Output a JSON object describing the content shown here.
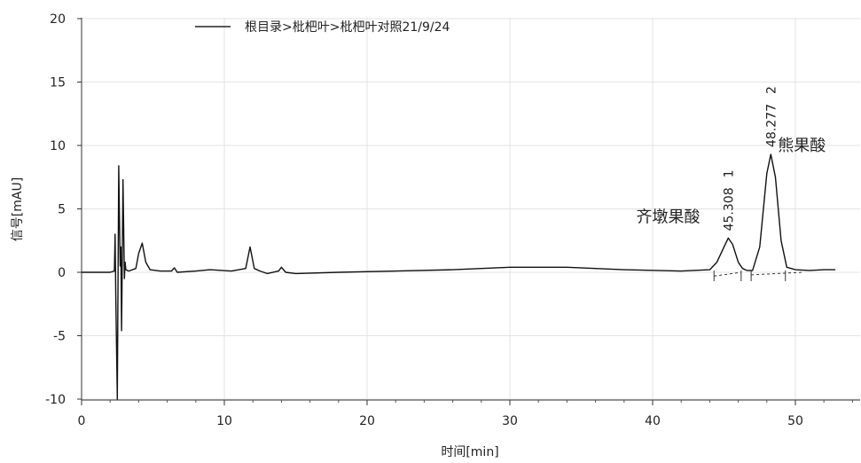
{
  "chart_data": {
    "type": "line",
    "xlabel": "时间[min]",
    "ylabel": "信号[mAU]",
    "xlim": [
      0,
      56
    ],
    "ylim": [
      -10,
      20
    ],
    "x_ticks": [
      0,
      10,
      20,
      30,
      40,
      50
    ],
    "y_ticks": [
      -10,
      -5,
      0,
      5,
      10,
      15,
      20
    ],
    "legend": {
      "position": "top",
      "entries": [
        "根目录>枇杷叶>枇杷叶对照21/9/24"
      ]
    },
    "series": [
      {
        "name": "根目录>枇杷叶>枇杷叶对照21/9/24",
        "x": [
          0,
          2.0,
          2.3,
          2.35,
          2.4,
          2.5,
          2.6,
          2.7,
          2.75,
          2.8,
          2.85,
          2.9,
          3.0,
          3.05,
          3.1,
          3.3,
          3.8,
          4.0,
          4.25,
          4.5,
          4.8,
          5.5,
          6.3,
          6.5,
          6.7,
          8.0,
          9.0,
          10.5,
          11.5,
          11.8,
          12.1,
          12.5,
          13.0,
          13.8,
          14.0,
          14.3,
          15.0,
          18.0,
          22.0,
          26.0,
          30.0,
          34.0,
          38.0,
          42.0,
          44.0,
          44.5,
          45.0,
          45.3,
          45.6,
          46.0,
          46.3,
          46.6,
          47.0,
          47.5,
          48.0,
          48.28,
          48.6,
          49.0,
          49.4,
          50.0,
          51.0,
          52.0,
          52.8
        ],
        "y": [
          0,
          0,
          0.1,
          3.0,
          -2.0,
          -10.0,
          8.4,
          0.5,
          2.0,
          -4.6,
          1.0,
          7.3,
          -0.5,
          0.8,
          0.2,
          0.1,
          0.3,
          1.5,
          2.3,
          0.8,
          0.2,
          0.1,
          0.1,
          0.35,
          0.0,
          0.1,
          0.2,
          0.1,
          0.3,
          2.0,
          0.3,
          0.1,
          -0.1,
          0.1,
          0.4,
          0.0,
          -0.1,
          0.0,
          0.1,
          0.2,
          0.4,
          0.4,
          0.2,
          0.1,
          0.2,
          0.8,
          2.0,
          2.7,
          2.2,
          0.8,
          0.3,
          0.15,
          0.15,
          2.0,
          7.8,
          9.3,
          7.5,
          2.5,
          0.4,
          0.2,
          0.15,
          0.2,
          0.2
        ]
      }
    ],
    "peaks": [
      {
        "number": "1",
        "rt": "45.308",
        "name": "齐墩果酸",
        "x": 45.308,
        "y": 2.7
      },
      {
        "number": "2",
        "rt": "48.277",
        "name": "熊果酸",
        "x": 48.277,
        "y": 9.3
      }
    ],
    "baselines": [
      {
        "x": [
          44.3,
          46.2
        ],
        "y": [
          -0.3,
          0.0
        ]
      },
      {
        "x": [
          46.9,
          50.5
        ],
        "y": [
          -0.2,
          0.0
        ]
      }
    ],
    "integration_marks": [
      44.3,
      46.2,
      46.9,
      49.3
    ]
  }
}
